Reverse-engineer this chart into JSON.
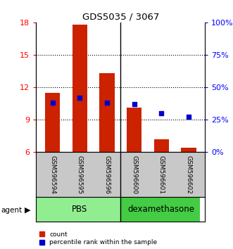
{
  "title": "GDS5035 / 3067",
  "samples": [
    "GSM596594",
    "GSM596595",
    "GSM596596",
    "GSM596600",
    "GSM596601",
    "GSM596602"
  ],
  "bar_heights": [
    11.5,
    17.8,
    13.3,
    10.1,
    7.2,
    6.4
  ],
  "bar_baseline": 6.0,
  "blue_percentiles": [
    38,
    42,
    38,
    37,
    30,
    27
  ],
  "ylim_left": [
    6,
    18
  ],
  "ylim_right": [
    0,
    100
  ],
  "yticks_left": [
    6,
    9,
    12,
    15,
    18
  ],
  "ytick_labels_left": [
    "6",
    "9",
    "12",
    "15",
    "18"
  ],
  "yticks_right_pct": [
    0,
    25,
    50,
    75,
    100
  ],
  "ytick_labels_right": [
    "0%",
    "25%",
    "50%",
    "75%",
    "100%"
  ],
  "pbs_color": "#90EE90",
  "dex_color": "#44CC44",
  "bar_color": "#CC2200",
  "blue_color": "#0000CC",
  "background_label": "#C8C8C8",
  "agent_label": "agent",
  "legend_count_label": "count",
  "legend_pct_label": "percentile rank within the sample"
}
